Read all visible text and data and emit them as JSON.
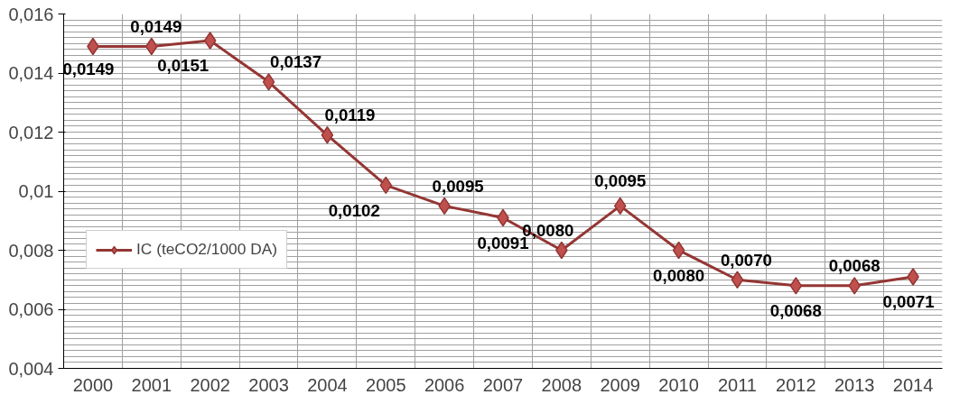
{
  "chart_data": {
    "type": "line",
    "categories": [
      "2000",
      "2001",
      "2002",
      "2003",
      "2004",
      "2005",
      "2006",
      "2007",
      "2008",
      "2009",
      "2010",
      "2011",
      "2012",
      "2013",
      "2014"
    ],
    "series": [
      {
        "name": "IC (teCO2/1000 DA)",
        "color": "#943634",
        "values": [
          0.0149,
          0.0149,
          0.0151,
          0.0137,
          0.0119,
          0.0102,
          0.0095,
          0.0091,
          0.008,
          0.0095,
          0.008,
          0.007,
          0.0068,
          0.0068,
          0.0071
        ],
        "value_labels": [
          "0,0149",
          "0,0149",
          "0,0151",
          "0,0137",
          "0,0119",
          "0,0102",
          "0,0095",
          "0,0091",
          "0,0080",
          "0,0095",
          "0,0080",
          "0,0070",
          "0,0068",
          "0,0068",
          "0,0071"
        ]
      }
    ],
    "ylim": [
      0.004,
      0.016
    ],
    "yticks": [
      {
        "value": 0.004,
        "label": "0,004"
      },
      {
        "value": 0.006,
        "label": "0,006"
      },
      {
        "value": 0.008,
        "label": "0,008"
      },
      {
        "value": 0.01,
        "label": "0,01"
      },
      {
        "value": 0.012,
        "label": "0,012"
      },
      {
        "value": 0.014,
        "label": "0,014"
      },
      {
        "value": 0.016,
        "label": "0,016"
      }
    ],
    "grid": true,
    "legend": "left",
    "marker": "diamond",
    "line_style": "solid"
  }
}
